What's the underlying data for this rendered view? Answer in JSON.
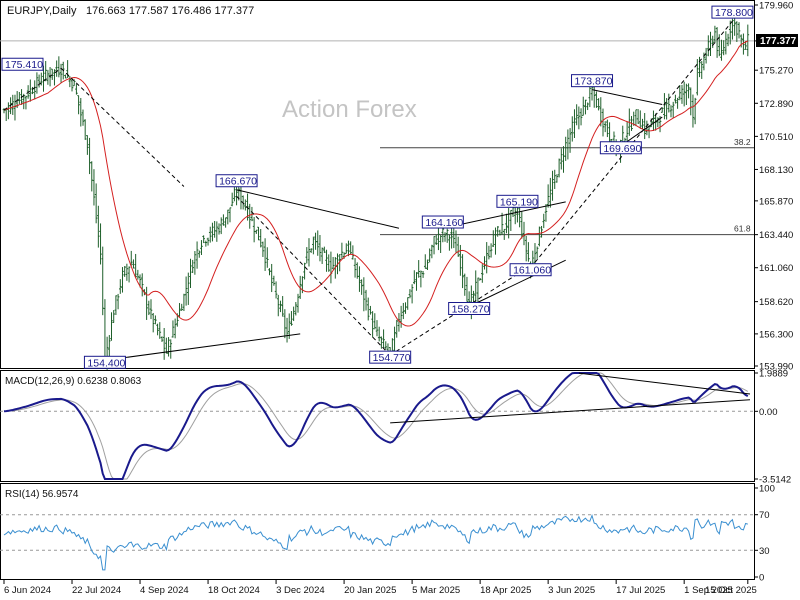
{
  "header": {
    "symbol": "EURJPY,Daily",
    "ohlc": "176.663 177.587 176.486 177.377",
    "watermark": "Action Forex"
  },
  "colors": {
    "candle": "#1e5f2a",
    "ma": "#d42020",
    "macd": "#1a1a8c",
    "signal": "#a0a0a0",
    "rsi": "#3a8fd0",
    "trend": "#000000"
  },
  "chart_data": [
    {
      "type": "candlestick",
      "title": "EURJPY,Daily",
      "x_labels": [
        "6 Jun 2024",
        "22 Jul 2024",
        "4 Sep 2024",
        "18 Oct 2024",
        "3 Dec 2024",
        "20 Jan 2025",
        "5 Mar 2025",
        "18 Apr 2025",
        "3 Jun 2025",
        "17 Jul 2025",
        "1 Sep 2025",
        "15 Oct 2025"
      ],
      "y_ticks": [
        "179.960",
        "177.377",
        "175.270",
        "172.890",
        "170.510",
        "168.130",
        "165.870",
        "163.440",
        "161.060",
        "158.620",
        "156.300",
        "153.990"
      ],
      "ylim": [
        153.99,
        179.96
      ],
      "last_price": "177.377",
      "price_path": [
        [
          0,
          172.4
        ],
        [
          10,
          173.5
        ],
        [
          18,
          174.8
        ],
        [
          26,
          175.41
        ],
        [
          32,
          174.2
        ],
        [
          38,
          170.0
        ],
        [
          44,
          162.0
        ],
        [
          46,
          154.4
        ],
        [
          50,
          158.0
        ],
        [
          54,
          160.5
        ],
        [
          58,
          161.5
        ],
        [
          62,
          160.0
        ],
        [
          66,
          158.0
        ],
        [
          70,
          156.5
        ],
        [
          74,
          155.0
        ],
        [
          78,
          157.0
        ],
        [
          82,
          159.0
        ],
        [
          86,
          161.5
        ],
        [
          90,
          163.0
        ],
        [
          94,
          163.5
        ],
        [
          98,
          164.0
        ],
        [
          102,
          165.0
        ],
        [
          106,
          166.67
        ],
        [
          110,
          165.5
        ],
        [
          114,
          164.0
        ],
        [
          118,
          162.5
        ],
        [
          122,
          160.0
        ],
        [
          126,
          158.0
        ],
        [
          129,
          156.3
        ],
        [
          133,
          158.5
        ],
        [
          137,
          161.5
        ],
        [
          141,
          163.0
        ],
        [
          145,
          162.0
        ],
        [
          149,
          161.0
        ],
        [
          153,
          162.0
        ],
        [
          157,
          162.5
        ],
        [
          161,
          160.5
        ],
        [
          165,
          158.5
        ],
        [
          169,
          156.5
        ],
        [
          173,
          155.5
        ],
        [
          176,
          154.77
        ],
        [
          180,
          157.5
        ],
        [
          184,
          158.8
        ],
        [
          188,
          160.5
        ],
        [
          192,
          161.0
        ],
        [
          196,
          163.0
        ],
        [
          200,
          163.5
        ],
        [
          204,
          163.3
        ],
        [
          208,
          161.5
        ],
        [
          212,
          158.27
        ],
        [
          216,
          160.0
        ],
        [
          220,
          161.8
        ],
        [
          224,
          163.5
        ],
        [
          228,
          164.0
        ],
        [
          232,
          165.0
        ],
        [
          234,
          165.19
        ],
        [
          237,
          163.0
        ],
        [
          240,
          161.06
        ],
        [
          244,
          163.5
        ],
        [
          248,
          166.0
        ],
        [
          252,
          168.0
        ],
        [
          256,
          169.9
        ],
        [
          260,
          171.5
        ],
        [
          264,
          172.5
        ],
        [
          268,
          173.87
        ],
        [
          272,
          172.0
        ],
        [
          276,
          170.5
        ],
        [
          280,
          169.69
        ],
        [
          284,
          171.0
        ],
        [
          288,
          172.0
        ],
        [
          292,
          171.0
        ],
        [
          296,
          171.5
        ],
        [
          300,
          172.2
        ],
        [
          304,
          172.8
        ],
        [
          308,
          173.5
        ],
        [
          312,
          174.0
        ],
        [
          314,
          172.0
        ],
        [
          316,
          175.0
        ],
        [
          320,
          176.5
        ],
        [
          324,
          178.0
        ],
        [
          326,
          176.0
        ],
        [
          328,
          177.0
        ],
        [
          332,
          178.8
        ],
        [
          335,
          178.0
        ],
        [
          337,
          176.8
        ],
        [
          339,
          177.377
        ]
      ],
      "annotations": [
        {
          "label": "175.410",
          "x": 26,
          "y": 175.41
        },
        {
          "label": "154.400",
          "x": 46,
          "y": 154.4
        },
        {
          "label": "166.670",
          "x": 106,
          "y": 166.67
        },
        {
          "label": "164.160",
          "x": 200,
          "y": 163.7
        },
        {
          "label": "165.190",
          "x": 234,
          "y": 165.19
        },
        {
          "label": "158.270",
          "x": 212,
          "y": 158.27
        },
        {
          "label": "161.060",
          "x": 240,
          "y": 161.06
        },
        {
          "label": "154.770",
          "x": 176,
          "y": 154.77
        },
        {
          "label": "173.870",
          "x": 268,
          "y": 173.87
        },
        {
          "label": "169.690",
          "x": 280,
          "y": 169.69
        },
        {
          "label": "178.800",
          "x": 332,
          "y": 178.8
        }
      ],
      "fib_levels": [
        {
          "label": "38.2",
          "y": 169.69
        },
        {
          "label": "61.8",
          "y": 163.44
        }
      ]
    },
    {
      "type": "line",
      "title": "MACD(12,26,9) 0.6238 0.8063",
      "y_ticks": [
        "1.9889",
        "0.00",
        "-3.5142"
      ],
      "ylim": [
        -3.5142,
        1.9889
      ]
    },
    {
      "type": "line",
      "title": "RSI(14) 56.9574",
      "y_ticks": [
        "100",
        "70",
        "30",
        "0"
      ],
      "ylim": [
        0,
        100
      ]
    }
  ]
}
